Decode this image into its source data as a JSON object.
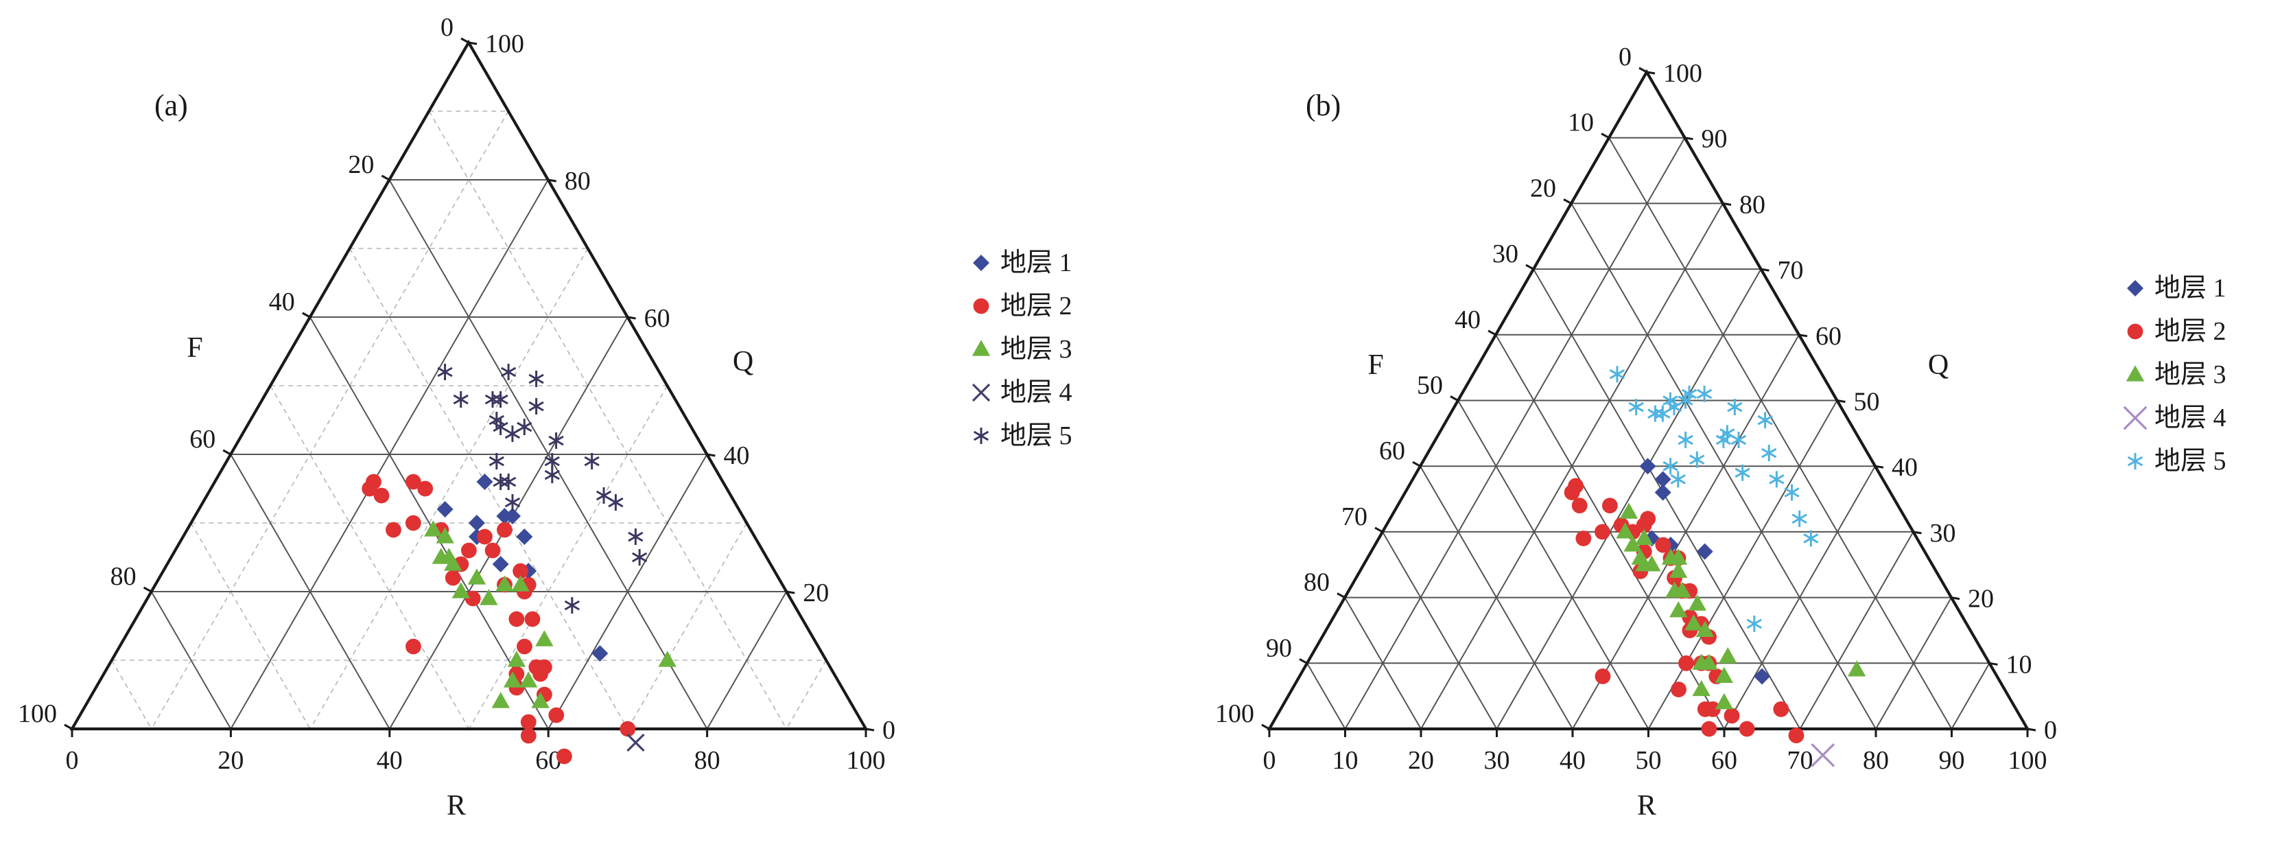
{
  "colors": {
    "layer1": "#3b4b9a",
    "layer2": "#e03232",
    "layer3": "#6cb33e",
    "layer4_a": "#45406d",
    "layer5_a": "#3a3760",
    "layer4_b": "#a98cc6",
    "layer5_b": "#4fb3e0",
    "frame": "#1a1a1a",
    "grid_major": "#555555",
    "grid_minor": "#b5b5b5"
  },
  "chart_data": [
    {
      "type": "scatter",
      "subtype": "ternary",
      "panel_label": "(a)",
      "axes": {
        "F_label": "F",
        "Q_label": "Q",
        "R_label": "R"
      },
      "ticks": {
        "F": [
          "0",
          "20",
          "40",
          "60",
          "80",
          "100"
        ],
        "Q": [
          "100",
          "80",
          "60",
          "40",
          "20",
          "0"
        ],
        "R": [
          "0",
          "20",
          "40",
          "60",
          "80",
          "100"
        ]
      },
      "grid": {
        "major": 20,
        "minor": 10,
        "minor_dashed": true
      },
      "legend_position": "right",
      "series": [
        {
          "name": "地层 1",
          "marker": "diamond",
          "color_key": "layer1",
          "points": [
            [
              31,
              37
            ],
            [
              34,
              30
            ],
            [
              36,
              34
            ],
            [
              37,
              35
            ],
            [
              40,
              29
            ],
            [
              39,
              30
            ],
            [
              42,
              34
            ],
            [
              46,
              31
            ],
            [
              61,
              28
            ],
            [
              43,
              29
            ]
          ]
        },
        {
          "name": "地层 2",
          "marker": "circle",
          "color_key": "layer2",
          "points": [
            [
              20,
              45
            ],
            [
              20,
              44
            ],
            [
              22,
              44
            ],
            [
              26,
              45
            ],
            [
              28,
              42
            ],
            [
              25,
              39
            ],
            [
              27,
              38
            ],
            [
              32,
              39
            ],
            [
              37,
              37
            ],
            [
              37,
              39
            ],
            [
              37,
              41
            ],
            [
              38,
              34
            ],
            [
              40,
              34
            ],
            [
              40,
              31
            ],
            [
              41,
              40
            ],
            [
              44,
              35
            ],
            [
              45,
              32
            ],
            [
              47,
              33
            ],
            [
              48,
              36
            ],
            [
              50,
              34
            ],
            [
              51,
              37
            ],
            [
              52,
              40
            ],
            [
              54,
              37
            ],
            [
              55,
              37
            ],
            [
              57,
              38
            ],
            [
              57,
              42
            ],
            [
              58,
              43
            ],
            [
              60,
              38
            ],
            [
              64,
              40
            ],
            [
              37,
              51
            ],
            [
              53,
              41
            ],
            [
              55,
              36
            ],
            [
              47,
              32
            ],
            [
              70,
              30
            ]
          ]
        },
        {
          "name": "地层 3",
          "marker": "triangle",
          "color_key": "layer3",
          "points": [
            [
              31,
              40
            ],
            [
              33,
              39
            ],
            [
              34,
              41
            ],
            [
              35,
              40
            ],
            [
              36,
              40
            ],
            [
              39,
              41
            ],
            [
              40,
              38
            ],
            [
              43,
              38
            ],
            [
              44,
              35
            ],
            [
              46,
              33
            ],
            [
              51,
              39
            ],
            [
              52,
              41
            ],
            [
              52,
              44
            ],
            [
              54,
              39
            ],
            [
              53,
              34
            ],
            [
              57,
              39
            ],
            [
              70,
              20
            ]
          ]
        },
        {
          "name": "地层 4",
          "marker": "x",
          "color_key": "layer4_a",
          "points": [
            [
              72,
              30
            ]
          ]
        },
        {
          "name": "地层 5",
          "marker": "asterisk",
          "color_key": "layer5_a",
          "points": [
            [
              21,
              27
            ],
            [
              25,
              27
            ],
            [
              29,
              23
            ],
            [
              30,
              22
            ],
            [
              31,
              24
            ],
            [
              32,
              24
            ],
            [
              34,
              23
            ],
            [
              34,
              27
            ],
            [
              35,
              21
            ],
            [
              35,
              18
            ],
            [
              36,
              28
            ],
            [
              37,
              27
            ],
            [
              39,
              28
            ],
            [
              40,
              18
            ],
            [
              41,
              20
            ],
            [
              42,
              21
            ],
            [
              46,
              15
            ],
            [
              50,
              16
            ],
            [
              52,
              15
            ],
            [
              54,
              28
            ],
            [
              57,
              15
            ],
            [
              59,
              16
            ],
            [
              33,
              16
            ],
            [
              29,
              19
            ]
          ]
        }
      ]
    },
    {
      "type": "scatter",
      "subtype": "ternary",
      "panel_label": "(b)",
      "axes": {
        "F_label": "F",
        "Q_label": "Q",
        "R_label": "R"
      },
      "ticks": {
        "F": [
          "0",
          "10",
          "20",
          "30",
          "40",
          "50",
          "60",
          "70",
          "80",
          "90",
          "100"
        ],
        "Q": [
          "100",
          "90",
          "80",
          "70",
          "60",
          "50",
          "40",
          "30",
          "20",
          "10",
          "0"
        ],
        "R": [
          "0",
          "10",
          "20",
          "30",
          "40",
          "50",
          "60",
          "70",
          "80",
          "90",
          "100"
        ]
      },
      "grid": {
        "major": 10,
        "minor": null,
        "minor_dashed": false
      },
      "legend_position": "right",
      "series": [
        {
          "name": "地层 1",
          "marker": "diamond",
          "color_key": "layer1",
          "points": [
            [
              30,
              30
            ],
            [
              33,
              29
            ],
            [
              34,
              30
            ],
            [
              36,
              35
            ],
            [
              39,
              33
            ],
            [
              44,
              29
            ],
            [
              61,
              31
            ]
          ]
        },
        {
          "name": "地层 2",
          "marker": "circle",
          "color_key": "layer2",
          "points": [
            [
              22,
              42
            ],
            [
              22,
              41
            ],
            [
              24,
              42
            ],
            [
              27,
              44
            ],
            [
              29,
              41
            ],
            [
              28,
              38
            ],
            [
              31,
              38
            ],
            [
              33,
              37
            ],
            [
              34,
              35
            ],
            [
              34,
              34
            ],
            [
              38,
              34
            ],
            [
              36,
              37
            ],
            [
              37,
              39
            ],
            [
              40,
              34
            ],
            [
              41,
              33
            ],
            [
              42,
              35
            ],
            [
              44,
              35
            ],
            [
              45,
              34
            ],
            [
              47,
              36
            ],
            [
              48,
              37
            ],
            [
              49,
              35
            ],
            [
              50,
              40
            ],
            [
              51,
              43
            ],
            [
              51,
              35
            ],
            [
              52,
              38
            ],
            [
              53,
              37
            ],
            [
              55,
              37
            ],
            [
              57,
              40
            ],
            [
              58,
              42
            ],
            [
              60,
              38
            ],
            [
              63,
              37
            ],
            [
              70,
              31
            ],
            [
              40,
              52
            ],
            [
              66,
              31
            ],
            [
              56,
              41
            ]
          ]
        },
        {
          "name": "地层 3",
          "marker": "triangle",
          "color_key": "layer3",
          "points": [
            [
              31,
              36
            ],
            [
              32,
              38
            ],
            [
              34,
              38
            ],
            [
              35,
              36
            ],
            [
              36,
              38
            ],
            [
              37,
              38
            ],
            [
              38,
              37
            ],
            [
              40,
              34
            ],
            [
              41,
              33
            ],
            [
              42,
              34
            ],
            [
              43,
              36
            ],
            [
              44,
              35
            ],
            [
              45,
              37
            ],
            [
              47,
              34
            ],
            [
              48,
              36
            ],
            [
              50,
              35
            ],
            [
              52,
              38
            ],
            [
              53,
              37
            ],
            [
              54,
              40
            ],
            [
              56,
              36
            ],
            [
              55,
              34
            ],
            [
              58,
              38
            ],
            [
              73,
              18
            ]
          ]
        },
        {
          "name": "地层 4",
          "marker": "x",
          "color_key": "layer4_b",
          "points": [
            [
              75,
              29
            ]
          ]
        },
        {
          "name": "地层 5",
          "marker": "asterisk",
          "color_key": "layer5_b",
          "points": [
            [
              19,
              27
            ],
            [
              24,
              27
            ],
            [
              27,
              25
            ],
            [
              28,
              22
            ],
            [
              28,
              24
            ],
            [
              29,
              22
            ],
            [
              30,
              20
            ],
            [
              30,
              19
            ],
            [
              32,
              17
            ],
            [
              33,
              23
            ],
            [
              33,
              27
            ],
            [
              35,
              27
            ],
            [
              36,
              23
            ],
            [
              37,
              14
            ],
            [
              38,
              17
            ],
            [
              38,
              18
            ],
            [
              40,
              16
            ],
            [
              42,
              11
            ],
            [
              43,
              18
            ],
            [
              45,
              13
            ],
            [
              48,
              14
            ],
            [
              51,
              13
            ],
            [
              54,
              14
            ],
            [
              56,
              28
            ],
            [
              57,
              14
            ]
          ]
        }
      ]
    }
  ]
}
